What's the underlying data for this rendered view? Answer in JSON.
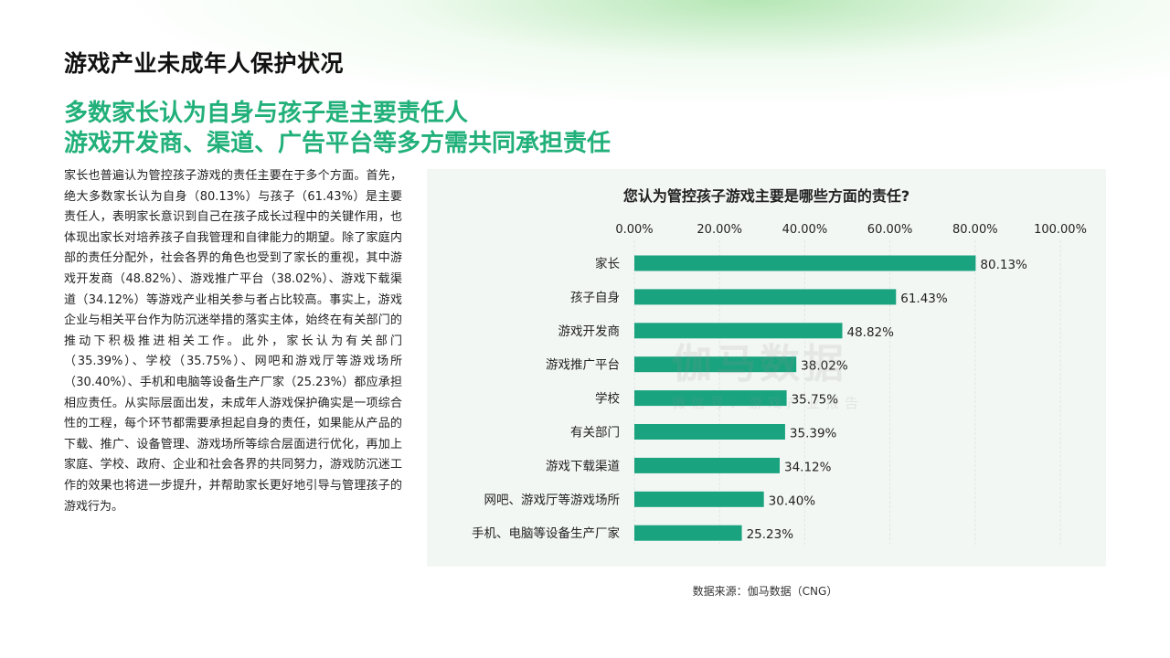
{
  "page": {
    "title": "游戏产业未成年人保护状况",
    "headline_line1": "多数家长认为自身与孩子是主要责任人",
    "headline_line2": "游戏开发商、渠道、广告平台等多方需共同承担责任",
    "body": "家长也普遍认为管控孩子游戏的责任主要在于多个方面。首先，绝大多数家长认为自身（80.13%）与孩子（61.43%）是主要责任人，表明家长意识到自己在孩子成长过程中的关键作用，也体现出家长对培养孩子自我管理和自律能力的期望。除了家庭内部的责任分配外，社会各界的角色也受到了家长的重视，其中游戏开发商（48.82%）、游戏推广平台（38.02%）、游戏下载渠道（34.12%）等游戏产业相关参与者占比较高。事实上，游戏企业与相关平台作为防沉迷举措的落实主体，始终在有关部门的推动下积极推进相关工作。此外，家长认为有关部门（35.39%）、学校（35.75%）、网吧和游戏厅等游戏场所（30.40%）、手机和电脑等设备生产厂家（25.23%）都应承担相应责任。从实际层面出发，未成年人游戏保护确实是一项综合性的工程，每个环节都需要承担起自身的责任，如果能从产品的下载、推广、设备管理、游戏场所等综合层面进行优化，再加上家庭、学校、政府、企业和社会各界的共同努力，游戏防沉迷工作的效果也将进一步提升，并帮助家长更好地引导与管理孩子的游戏行为。",
    "watermark": "伽马数据",
    "watermark_sub": "微信号：游戏产业报告",
    "source": "数据来源：伽马数据（CNG）"
  },
  "colors": {
    "accent": "#22b07a",
    "bar": "#1aa37f",
    "panel": "#f3f7f4"
  },
  "chart_data": {
    "type": "bar",
    "orientation": "horizontal",
    "title": "您认为管控孩子游戏主要是哪些方面的责任?",
    "categories": [
      "家长",
      "孩子自身",
      "游戏开发商",
      "游戏推广平台",
      "学校",
      "有关部门",
      "游戏下载渠道",
      "网吧、游戏厅等游戏场所",
      "手机、电脑等设备生产厂家"
    ],
    "values": [
      80.13,
      61.43,
      48.82,
      38.02,
      35.75,
      35.39,
      34.12,
      30.4,
      25.23
    ],
    "value_labels": [
      "80.13%",
      "61.43%",
      "48.82%",
      "38.02%",
      "35.75%",
      "35.39%",
      "34.12%",
      "30.40%",
      "25.23%"
    ],
    "xlim": [
      0,
      100
    ],
    "ticks": [
      0,
      20,
      40,
      60,
      80,
      100
    ],
    "tick_labels": [
      "0.00%",
      "20.00%",
      "40.00%",
      "60.00%",
      "80.00%",
      "100.00%"
    ],
    "axis_position": "top",
    "grid": true,
    "xlabel": "",
    "ylabel": ""
  }
}
